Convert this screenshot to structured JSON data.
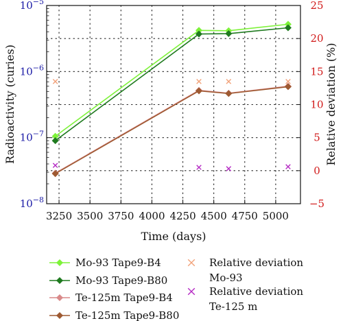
{
  "chart_data": {
    "type": "line",
    "xlabel": "Time (days)",
    "ylabel_left": "Radioactivity (curies)",
    "ylabel_right": "Relative deviation (%)",
    "x_ticks": [
      "3250",
      "3500",
      "3750",
      "4000",
      "4250",
      "4500",
      "4750",
      "5000"
    ],
    "x_tick_values": [
      3250,
      3500,
      3750,
      4000,
      4250,
      4500,
      4750,
      5000
    ],
    "xlim": [
      3150,
      5200
    ],
    "y_left_scale": "log",
    "y_left_ticks": [
      {
        "base": "10",
        "exp": "−8",
        "value": 1e-08
      },
      {
        "base": "10",
        "exp": "−7",
        "value": 1e-07
      },
      {
        "base": "10",
        "exp": "−6",
        "value": 1e-06
      },
      {
        "base": "10",
        "exp": "−5",
        "value": 1e-05
      }
    ],
    "ylim_left": [
      1e-08,
      1e-05
    ],
    "y_right_ticks": [
      "−5",
      "0",
      "5",
      "10",
      "15",
      "20",
      "25"
    ],
    "y_right_tick_values": [
      -5,
      0,
      5,
      10,
      15,
      20,
      25
    ],
    "ylim_right": [
      -5,
      25
    ],
    "grid": true,
    "legend_placement": "bottom",
    "series": [
      {
        "name": "Mo-93 Tape9-B4",
        "axis": "left",
        "color": "#7ef23a",
        "marker": "diamond",
        "x": [
          3220,
          4380,
          4620,
          5100
        ],
        "y": [
          1.05e-07,
          4.2e-06,
          4.15e-06,
          5.2e-06
        ]
      },
      {
        "name": "Mo-93 Tape9-B80",
        "axis": "left",
        "color": "#1f7a1f",
        "marker": "diamond",
        "x": [
          3220,
          4380,
          4620,
          5100
        ],
        "y": [
          9e-08,
          3.7e-06,
          3.75e-06,
          4.6e-06
        ]
      },
      {
        "name": "Te-125m Tape9-B4",
        "axis": "left",
        "color": "#d98a8a",
        "marker": "diamond",
        "x": [
          3220,
          4380,
          4620,
          5100
        ],
        "y": [
          2.9e-08,
          5.2e-07,
          4.7e-07,
          6e-07
        ]
      },
      {
        "name": "Te-125m Tape9-B80",
        "axis": "left",
        "color": "#9e5a32",
        "marker": "diamond",
        "x": [
          3220,
          4380,
          4620,
          5100
        ],
        "y": [
          2.85e-08,
          5.1e-07,
          4.65e-07,
          5.9e-07
        ]
      },
      {
        "name": "Relative deviation Mo-93",
        "axis": "right",
        "color": "#f2a27a",
        "marker": "x",
        "x": [
          3220,
          4380,
          4620,
          5100
        ],
        "y": [
          13.5,
          13.5,
          13.5,
          13.5
        ]
      },
      {
        "name": "Relative deviation Te-125 m",
        "axis": "right",
        "color": "#b52bc4",
        "marker": "x",
        "x": [
          3220,
          4380,
          4620,
          5100
        ],
        "y": [
          0.8,
          0.5,
          0.3,
          0.6
        ]
      }
    ],
    "legend": [
      {
        "lines": [
          "Mo-93 Tape9-B4"
        ],
        "series": 0
      },
      {
        "lines": [
          "Mo-93 Tape9-B80"
        ],
        "series": 1
      },
      {
        "lines": [
          "Te-125m Tape9-B4"
        ],
        "series": 2
      },
      {
        "lines": [
          "Te-125m Tape9-B80"
        ],
        "series": 3
      },
      {
        "lines": [
          "Relative deviation",
          "Mo-93"
        ],
        "series": 4
      },
      {
        "lines": [
          "Relative deviation",
          "Te-125 m"
        ],
        "series": 5
      }
    ],
    "colors": {
      "left_axis": "#1a1aa6",
      "right_axis": "#d11a1a",
      "grid": "#222222",
      "text": "#111111"
    }
  }
}
